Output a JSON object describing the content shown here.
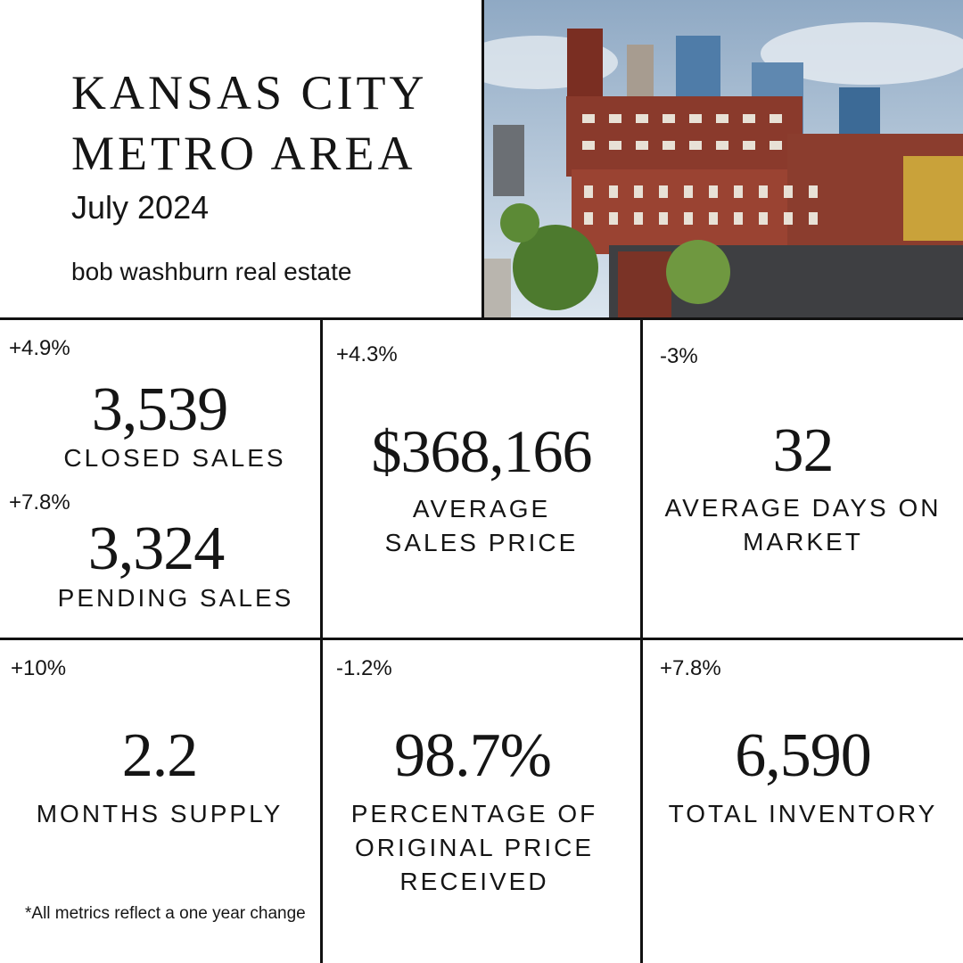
{
  "header": {
    "title_line1": "KANSAS CITY",
    "title_line2": "METRO AREA",
    "date": "July 2024",
    "brand": "bob washburn real estate"
  },
  "photo": {
    "description_icon": "kansas-city-skyline-photo"
  },
  "metrics": {
    "closed_sales": {
      "change": "+4.9%",
      "value": "3,539",
      "label": "CLOSED SALES"
    },
    "pending_sales": {
      "change": "+7.8%",
      "value": "3,324",
      "label": "PENDING SALES"
    },
    "avg_sales_price": {
      "change": "+4.3%",
      "value": "$368,166",
      "label_line1": "AVERAGE",
      "label_line2": "SALES PRICE"
    },
    "avg_days_on_market": {
      "change": "-3%",
      "value": "32",
      "label_line1": "AVERAGE DAYS ON",
      "label_line2": "MARKET"
    },
    "months_supply": {
      "change": "+10%",
      "value": "2.2",
      "label": "MONTHS SUPPLY"
    },
    "pct_original_price": {
      "change": "-1.2%",
      "value": "98.7%",
      "label_line1": "PERCENTAGE OF",
      "label_line2": "ORIGINAL PRICE",
      "label_line3": "RECEIVED"
    },
    "total_inventory": {
      "change": "+7.8%",
      "value": "6,590",
      "label": "TOTAL INVENTORY"
    }
  },
  "footnote": "*All metrics reflect a one year change",
  "colors": {
    "text": "#151515",
    "background": "#ffffff",
    "rule": "#111111"
  }
}
